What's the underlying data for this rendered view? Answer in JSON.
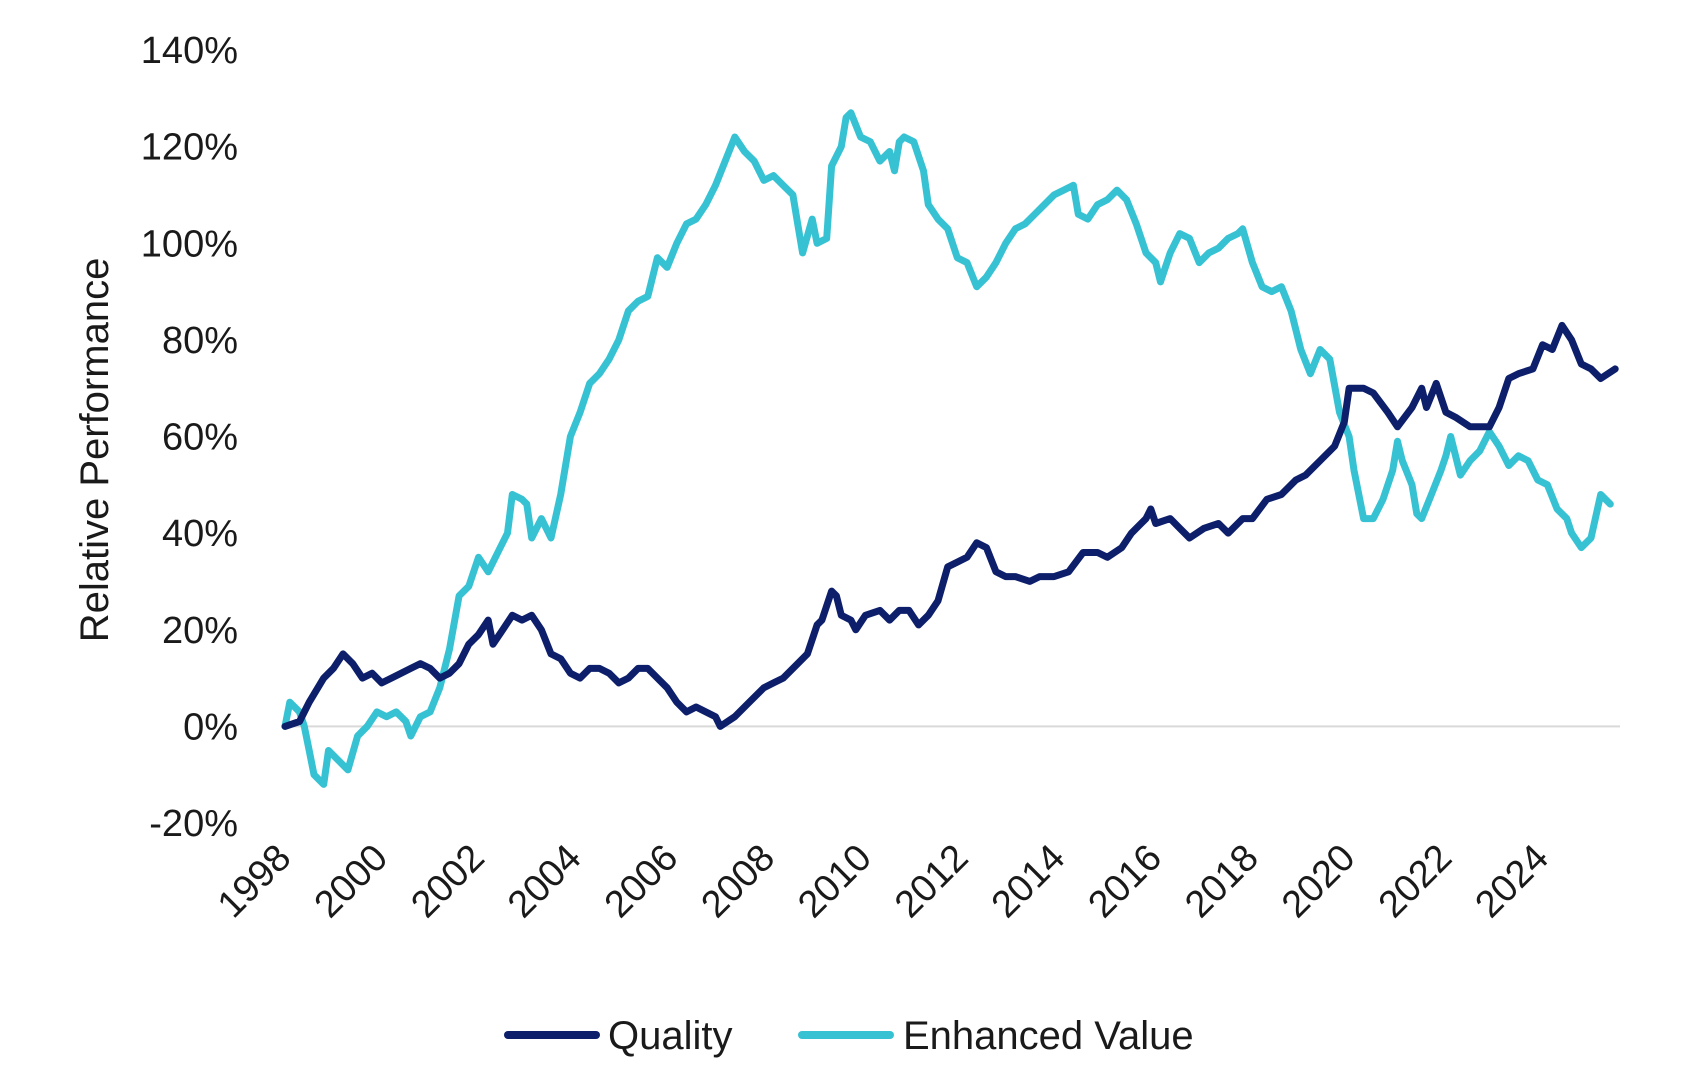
{
  "chart_data": {
    "type": "line",
    "title": "",
    "xlabel": "",
    "ylabel": "Relative Performance",
    "ylim": [
      -20,
      140
    ],
    "xlim": [
      1998,
      2025.6
    ],
    "y_ticks": [
      -20,
      0,
      20,
      40,
      60,
      80,
      100,
      120,
      140
    ],
    "y_tick_labels": [
      "-20%",
      "0%",
      "20%",
      "40%",
      "60%",
      "80%",
      "100%",
      "120%",
      "140%"
    ],
    "x_ticks": [
      1998,
      2000,
      2002,
      2004,
      2006,
      2008,
      2010,
      2012,
      2014,
      2016,
      2018,
      2020,
      2022,
      2024
    ],
    "x_tick_labels": [
      "1998",
      "2000",
      "2002",
      "2004",
      "2006",
      "2008",
      "2010",
      "2012",
      "2014",
      "2016",
      "2018",
      "2020",
      "2022",
      "2024"
    ],
    "grid": false,
    "zero_line": true,
    "legend_position": "bottom",
    "series": [
      {
        "name": "Quality",
        "color": "#0d1f6b",
        "points": [
          [
            1998.0,
            0
          ],
          [
            1998.3,
            1
          ],
          [
            1998.5,
            5
          ],
          [
            1998.8,
            10
          ],
          [
            1999.0,
            12
          ],
          [
            1999.2,
            15
          ],
          [
            1999.4,
            13
          ],
          [
            1999.6,
            10
          ],
          [
            1999.8,
            11
          ],
          [
            2000.0,
            9
          ],
          [
            2000.2,
            10
          ],
          [
            2000.4,
            11
          ],
          [
            2000.6,
            12
          ],
          [
            2000.8,
            13
          ],
          [
            2001.0,
            12
          ],
          [
            2001.2,
            10
          ],
          [
            2001.4,
            11
          ],
          [
            2001.6,
            13
          ],
          [
            2001.8,
            17
          ],
          [
            2002.0,
            19
          ],
          [
            2002.2,
            22
          ],
          [
            2002.3,
            17
          ],
          [
            2002.5,
            20
          ],
          [
            2002.7,
            23
          ],
          [
            2002.9,
            22
          ],
          [
            2003.1,
            23
          ],
          [
            2003.3,
            20
          ],
          [
            2003.5,
            15
          ],
          [
            2003.7,
            14
          ],
          [
            2003.9,
            11
          ],
          [
            2004.1,
            10
          ],
          [
            2004.3,
            12
          ],
          [
            2004.5,
            12
          ],
          [
            2004.7,
            11
          ],
          [
            2004.9,
            9
          ],
          [
            2005.1,
            10
          ],
          [
            2005.3,
            12
          ],
          [
            2005.5,
            12
          ],
          [
            2005.7,
            10
          ],
          [
            2005.9,
            8
          ],
          [
            2006.1,
            5
          ],
          [
            2006.3,
            3
          ],
          [
            2006.5,
            4
          ],
          [
            2006.7,
            3
          ],
          [
            2006.9,
            2
          ],
          [
            2007.0,
            0
          ],
          [
            2007.3,
            2
          ],
          [
            2007.6,
            5
          ],
          [
            2007.9,
            8
          ],
          [
            2008.1,
            9
          ],
          [
            2008.3,
            10
          ],
          [
            2008.6,
            13
          ],
          [
            2008.8,
            15
          ],
          [
            2009.0,
            21
          ],
          [
            2009.1,
            22
          ],
          [
            2009.3,
            28
          ],
          [
            2009.4,
            27
          ],
          [
            2009.5,
            23
          ],
          [
            2009.7,
            22
          ],
          [
            2009.8,
            20
          ],
          [
            2010.0,
            23
          ],
          [
            2010.3,
            24
          ],
          [
            2010.5,
            22
          ],
          [
            2010.7,
            24
          ],
          [
            2010.9,
            24
          ],
          [
            2011.1,
            21
          ],
          [
            2011.3,
            23
          ],
          [
            2011.5,
            26
          ],
          [
            2011.7,
            33
          ],
          [
            2011.9,
            34
          ],
          [
            2012.1,
            35
          ],
          [
            2012.3,
            38
          ],
          [
            2012.5,
            37
          ],
          [
            2012.7,
            32
          ],
          [
            2012.9,
            31
          ],
          [
            2013.1,
            31
          ],
          [
            2013.4,
            30
          ],
          [
            2013.6,
            31
          ],
          [
            2013.9,
            31
          ],
          [
            2014.2,
            32
          ],
          [
            2014.5,
            36
          ],
          [
            2014.8,
            36
          ],
          [
            2015.0,
            35
          ],
          [
            2015.3,
            37
          ],
          [
            2015.5,
            40
          ],
          [
            2015.8,
            43
          ],
          [
            2015.9,
            45
          ],
          [
            2016.0,
            42
          ],
          [
            2016.3,
            43
          ],
          [
            2016.5,
            41
          ],
          [
            2016.7,
            39
          ],
          [
            2017.0,
            41
          ],
          [
            2017.3,
            42
          ],
          [
            2017.5,
            40
          ],
          [
            2017.8,
            43
          ],
          [
            2018.0,
            43
          ],
          [
            2018.3,
            47
          ],
          [
            2018.6,
            48
          ],
          [
            2018.9,
            51
          ],
          [
            2019.1,
            52
          ],
          [
            2019.4,
            55
          ],
          [
            2019.7,
            58
          ],
          [
            2019.9,
            63
          ],
          [
            2020.0,
            70
          ],
          [
            2020.3,
            70
          ],
          [
            2020.5,
            69
          ],
          [
            2020.8,
            65
          ],
          [
            2021.0,
            62
          ],
          [
            2021.3,
            66
          ],
          [
            2021.5,
            70
          ],
          [
            2021.6,
            66
          ],
          [
            2021.8,
            71
          ],
          [
            2022.0,
            65
          ],
          [
            2022.2,
            64
          ],
          [
            2022.5,
            62
          ],
          [
            2022.7,
            62
          ],
          [
            2022.9,
            62
          ],
          [
            2023.1,
            66
          ],
          [
            2023.3,
            72
          ],
          [
            2023.5,
            73
          ],
          [
            2023.8,
            74
          ],
          [
            2024.0,
            79
          ],
          [
            2024.2,
            78
          ],
          [
            2024.4,
            83
          ],
          [
            2024.6,
            80
          ],
          [
            2024.8,
            75
          ],
          [
            2025.0,
            74
          ],
          [
            2025.2,
            72
          ],
          [
            2025.5,
            74
          ]
        ]
      },
      {
        "name": "Enhanced Value",
        "color": "#37c2d3",
        "points": [
          [
            1998.0,
            0
          ],
          [
            1998.1,
            5
          ],
          [
            1998.3,
            3
          ],
          [
            1998.4,
            0
          ],
          [
            1998.5,
            -5
          ],
          [
            1998.6,
            -10
          ],
          [
            1998.8,
            -12
          ],
          [
            1998.9,
            -5
          ],
          [
            1999.1,
            -7
          ],
          [
            1999.3,
            -9
          ],
          [
            1999.5,
            -2
          ],
          [
            1999.7,
            0
          ],
          [
            1999.9,
            3
          ],
          [
            2000.1,
            2
          ],
          [
            2000.3,
            3
          ],
          [
            2000.5,
            1
          ],
          [
            2000.6,
            -2
          ],
          [
            2000.8,
            2
          ],
          [
            2001.0,
            3
          ],
          [
            2001.2,
            8
          ],
          [
            2001.4,
            16
          ],
          [
            2001.6,
            27
          ],
          [
            2001.8,
            29
          ],
          [
            2002.0,
            35
          ],
          [
            2002.2,
            32
          ],
          [
            2002.4,
            36
          ],
          [
            2002.6,
            40
          ],
          [
            2002.7,
            48
          ],
          [
            2002.9,
            47
          ],
          [
            2003.0,
            46
          ],
          [
            2003.1,
            39
          ],
          [
            2003.3,
            43
          ],
          [
            2003.5,
            39
          ],
          [
            2003.7,
            48
          ],
          [
            2003.9,
            60
          ],
          [
            2004.1,
            65
          ],
          [
            2004.3,
            71
          ],
          [
            2004.5,
            73
          ],
          [
            2004.7,
            76
          ],
          [
            2004.9,
            80
          ],
          [
            2005.1,
            86
          ],
          [
            2005.3,
            88
          ],
          [
            2005.5,
            89
          ],
          [
            2005.7,
            97
          ],
          [
            2005.9,
            95
          ],
          [
            2006.1,
            100
          ],
          [
            2006.3,
            104
          ],
          [
            2006.5,
            105
          ],
          [
            2006.7,
            108
          ],
          [
            2006.9,
            112
          ],
          [
            2007.1,
            117
          ],
          [
            2007.3,
            122
          ],
          [
            2007.5,
            119
          ],
          [
            2007.7,
            117
          ],
          [
            2007.9,
            113
          ],
          [
            2008.1,
            114
          ],
          [
            2008.3,
            112
          ],
          [
            2008.5,
            110
          ],
          [
            2008.6,
            104
          ],
          [
            2008.7,
            98
          ],
          [
            2008.9,
            105
          ],
          [
            2009.0,
            100
          ],
          [
            2009.2,
            101
          ],
          [
            2009.3,
            116
          ],
          [
            2009.5,
            120
          ],
          [
            2009.6,
            126
          ],
          [
            2009.7,
            127
          ],
          [
            2009.9,
            122
          ],
          [
            2010.1,
            121
          ],
          [
            2010.3,
            117
          ],
          [
            2010.5,
            119
          ],
          [
            2010.6,
            115
          ],
          [
            2010.7,
            121
          ],
          [
            2010.8,
            122
          ],
          [
            2011.0,
            121
          ],
          [
            2011.2,
            115
          ],
          [
            2011.3,
            108
          ],
          [
            2011.5,
            105
          ],
          [
            2011.7,
            103
          ],
          [
            2011.9,
            97
          ],
          [
            2012.1,
            96
          ],
          [
            2012.3,
            91
          ],
          [
            2012.5,
            93
          ],
          [
            2012.7,
            96
          ],
          [
            2012.9,
            100
          ],
          [
            2013.1,
            103
          ],
          [
            2013.3,
            104
          ],
          [
            2013.5,
            106
          ],
          [
            2013.7,
            108
          ],
          [
            2013.9,
            110
          ],
          [
            2014.1,
            111
          ],
          [
            2014.3,
            112
          ],
          [
            2014.4,
            106
          ],
          [
            2014.6,
            105
          ],
          [
            2014.8,
            108
          ],
          [
            2015.0,
            109
          ],
          [
            2015.2,
            111
          ],
          [
            2015.4,
            109
          ],
          [
            2015.6,
            104
          ],
          [
            2015.8,
            98
          ],
          [
            2016.0,
            96
          ],
          [
            2016.1,
            92
          ],
          [
            2016.3,
            98
          ],
          [
            2016.5,
            102
          ],
          [
            2016.7,
            101
          ],
          [
            2016.9,
            96
          ],
          [
            2017.1,
            98
          ],
          [
            2017.3,
            99
          ],
          [
            2017.5,
            101
          ],
          [
            2017.7,
            102
          ],
          [
            2017.8,
            103
          ],
          [
            2018.0,
            96
          ],
          [
            2018.2,
            91
          ],
          [
            2018.4,
            90
          ],
          [
            2018.6,
            91
          ],
          [
            2018.8,
            86
          ],
          [
            2019.0,
            78
          ],
          [
            2019.2,
            73
          ],
          [
            2019.4,
            78
          ],
          [
            2019.6,
            76
          ],
          [
            2019.8,
            65
          ],
          [
            2020.0,
            60
          ],
          [
            2020.1,
            53
          ],
          [
            2020.3,
            43
          ],
          [
            2020.5,
            43
          ],
          [
            2020.7,
            47
          ],
          [
            2020.9,
            53
          ],
          [
            2021.0,
            59
          ],
          [
            2021.1,
            55
          ],
          [
            2021.3,
            50
          ],
          [
            2021.4,
            44
          ],
          [
            2021.5,
            43
          ],
          [
            2021.7,
            48
          ],
          [
            2021.9,
            53
          ],
          [
            2022.0,
            56
          ],
          [
            2022.1,
            60
          ],
          [
            2022.3,
            52
          ],
          [
            2022.5,
            55
          ],
          [
            2022.7,
            57
          ],
          [
            2022.9,
            61
          ],
          [
            2023.1,
            58
          ],
          [
            2023.3,
            54
          ],
          [
            2023.5,
            56
          ],
          [
            2023.7,
            55
          ],
          [
            2023.9,
            51
          ],
          [
            2024.1,
            50
          ],
          [
            2024.3,
            45
          ],
          [
            2024.5,
            43
          ],
          [
            2024.6,
            40
          ],
          [
            2024.8,
            37
          ],
          [
            2025.0,
            39
          ],
          [
            2025.2,
            48
          ],
          [
            2025.4,
            46
          ]
        ]
      }
    ]
  }
}
